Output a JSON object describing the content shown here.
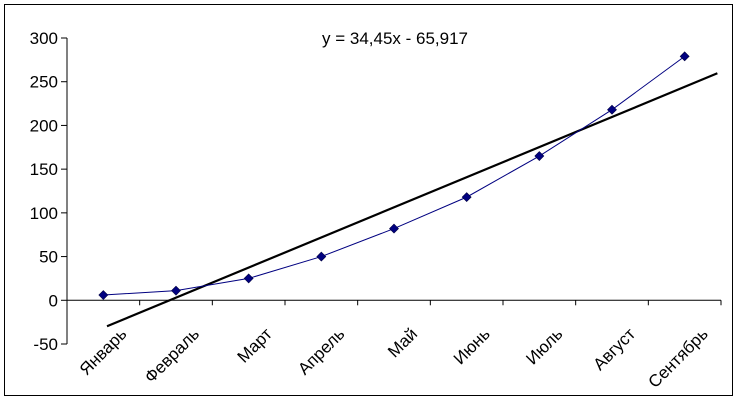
{
  "chart_data": {
    "type": "line",
    "categories": [
      "Январь",
      "Февраль",
      "Март",
      "Апрель",
      "Май",
      "Июнь",
      "Июль",
      "Август",
      "Сентябрь"
    ],
    "series": [
      {
        "values": [
          6,
          11,
          25,
          50,
          82,
          118,
          165,
          218,
          279
        ]
      }
    ],
    "trendline": {
      "type": "linear",
      "slope": 34.45,
      "intercept": -65.917,
      "equation": "y = 34,45x - 65,917"
    },
    "ylim": [
      -50,
      300
    ],
    "yticks": [
      -50,
      0,
      50,
      100,
      150,
      200,
      250,
      300
    ],
    "ytick_labels": [
      "-50",
      "0",
      "50",
      "100",
      "150",
      "200",
      "250",
      "300"
    ],
    "title": "",
    "xlabel": "",
    "ylabel": "",
    "grid": false,
    "legend": "none",
    "colors": {
      "series_line": "#000080",
      "marker": "#000080",
      "trendline": "#000000",
      "axis": "#000000"
    }
  }
}
